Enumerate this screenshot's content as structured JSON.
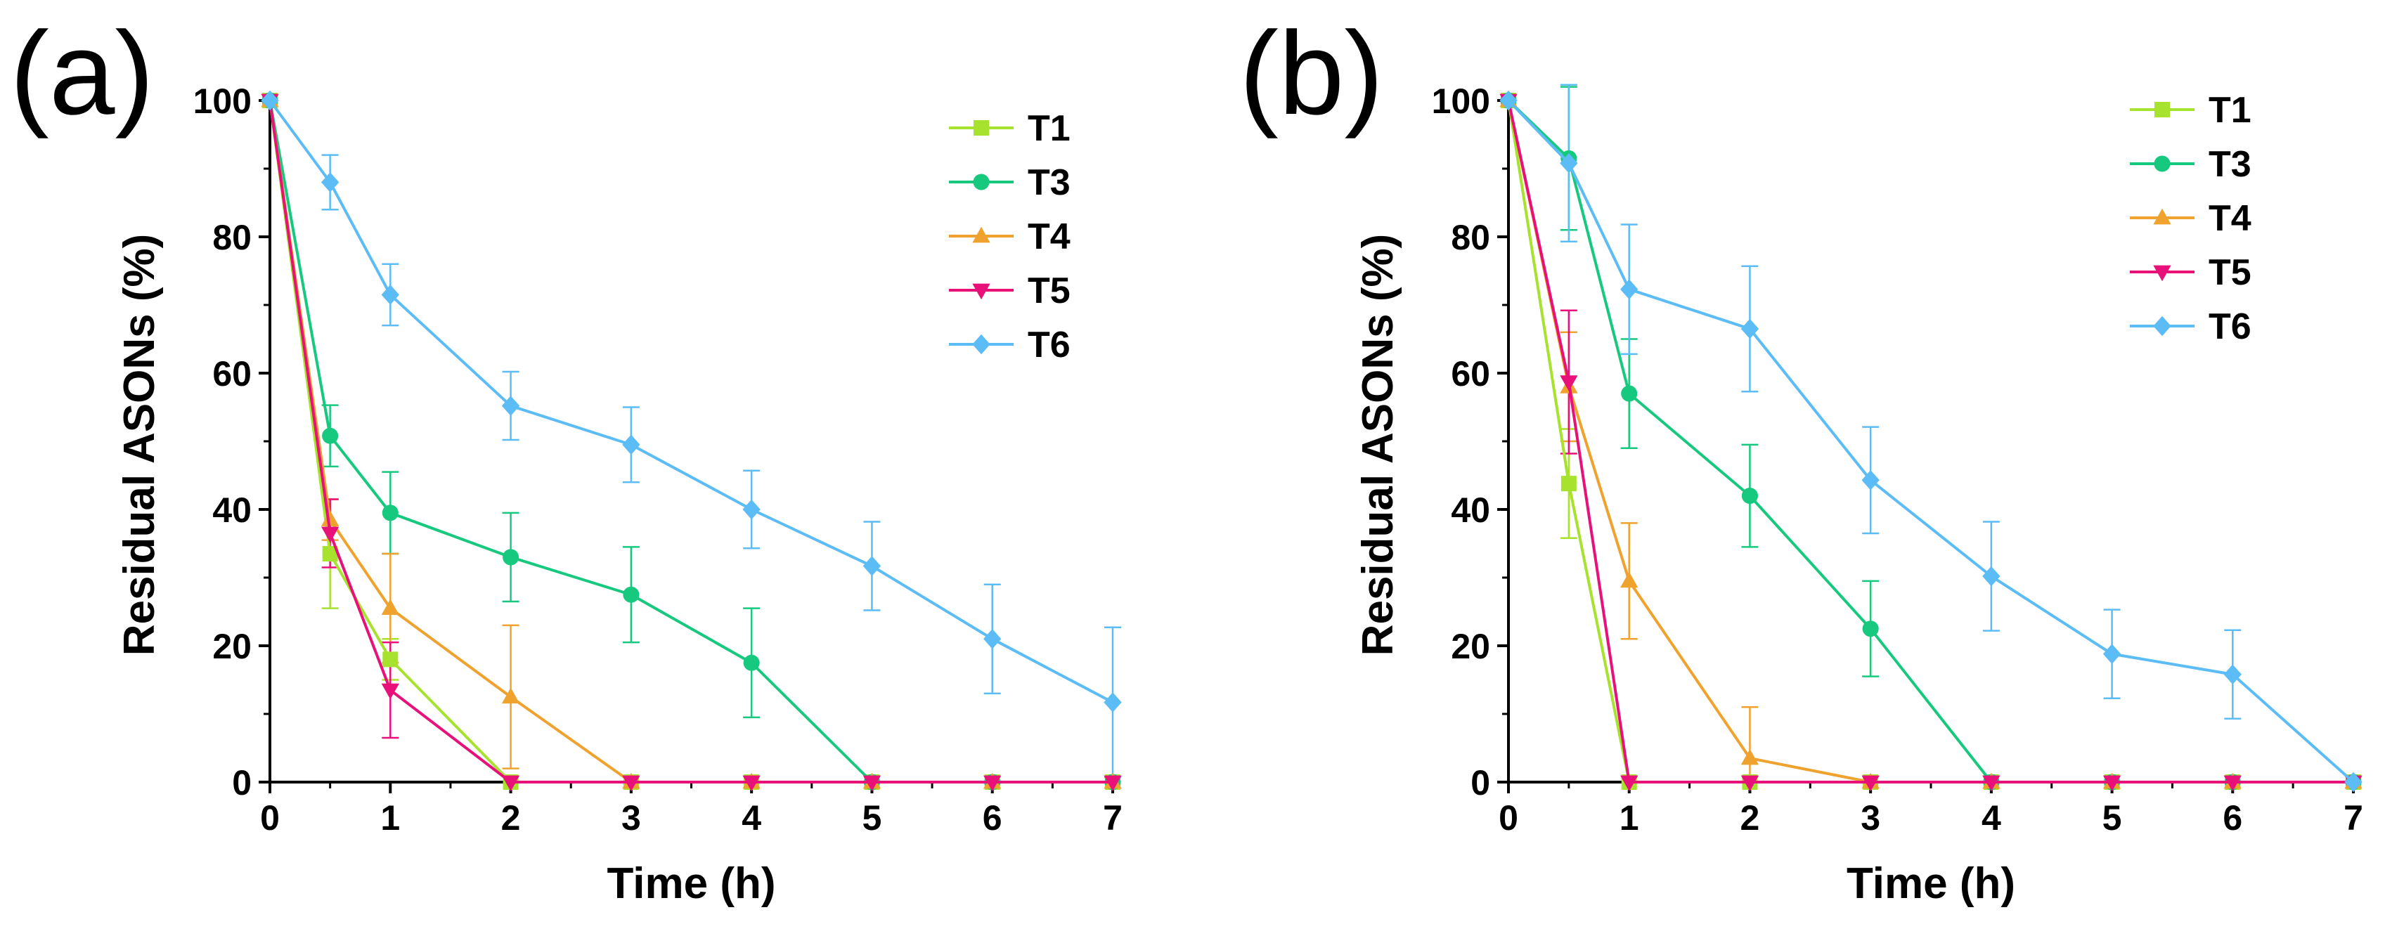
{
  "panels": [
    {
      "tag": "(a)",
      "chart_data": {
        "type": "line",
        "title": "",
        "xlabel": "Time (h)",
        "ylabel": "Residual ASONs (%)",
        "xlim": [
          0,
          7
        ],
        "ylim": [
          0,
          100
        ],
        "x_ticks": [
          0,
          1,
          2,
          3,
          4,
          5,
          6,
          7
        ],
        "y_ticks": [
          0,
          20,
          40,
          60,
          80,
          100
        ],
        "grid": false,
        "legend": "top-right",
        "series": [
          {
            "name": "T1",
            "color": "#a6e22e",
            "marker": "square",
            "x": [
              0,
              0.5,
              1,
              2,
              3,
              4,
              5,
              6,
              7
            ],
            "y": [
              100,
              33.5,
              18,
              0,
              0,
              0,
              0,
              0,
              0
            ],
            "err": [
              0,
              8,
              3,
              0,
              0,
              0,
              0,
              0,
              0
            ]
          },
          {
            "name": "T3",
            "color": "#17c97f",
            "marker": "circle",
            "x": [
              0,
              0.5,
              1,
              2,
              3,
              4,
              5,
              6,
              7
            ],
            "y": [
              100,
              50.8,
              39.5,
              33,
              27.5,
              17.5,
              0,
              0,
              0
            ],
            "err": [
              0,
              4.5,
              6,
              6.5,
              7,
              8,
              0,
              0,
              0
            ]
          },
          {
            "name": "T4",
            "color": "#f0a22e",
            "marker": "triangle-up",
            "x": [
              0,
              0.5,
              1,
              2,
              3,
              4,
              5,
              6,
              7
            ],
            "y": [
              100,
              38.5,
              25.5,
              12.5,
              0,
              0,
              0,
              0,
              0
            ],
            "err": [
              0,
              3,
              8,
              10.5,
              0,
              0,
              0,
              0,
              0
            ]
          },
          {
            "name": "T5",
            "color": "#e8117a",
            "marker": "triangle-down",
            "x": [
              0,
              0.5,
              1,
              2,
              3,
              4,
              5,
              6,
              7
            ],
            "y": [
              100,
              36.5,
              13.5,
              0,
              0,
              0,
              0,
              0,
              0
            ],
            "err": [
              0,
              5,
              7,
              0,
              0,
              0,
              0,
              0,
              0
            ]
          },
          {
            "name": "T6",
            "color": "#5cbcf5",
            "marker": "diamond",
            "x": [
              0,
              0.5,
              1,
              2,
              3,
              4,
              5,
              6,
              7
            ],
            "y": [
              100,
              88,
              71.5,
              55.2,
              49.5,
              40,
              31.7,
              21,
              11.7
            ],
            "err": [
              0,
              4,
              4.5,
              5,
              5.5,
              5.7,
              6.5,
              8,
              11
            ]
          }
        ]
      }
    },
    {
      "tag": "(b)",
      "chart_data": {
        "type": "line",
        "title": "",
        "xlabel": "Time (h)",
        "ylabel": "Residual ASONs (%)",
        "xlim": [
          0,
          7
        ],
        "ylim": [
          0,
          100
        ],
        "x_ticks": [
          0,
          1,
          2,
          3,
          4,
          5,
          6,
          7
        ],
        "y_ticks": [
          0,
          20,
          40,
          60,
          80,
          100
        ],
        "grid": false,
        "legend": "top-right",
        "series": [
          {
            "name": "T1",
            "color": "#a6e22e",
            "marker": "square",
            "x": [
              0,
              0.5,
              1,
              2,
              3,
              4,
              5,
              6,
              7
            ],
            "y": [
              100,
              43.8,
              0,
              0,
              0,
              0,
              0,
              0,
              0
            ],
            "err": [
              0,
              8,
              0,
              0,
              0,
              0,
              0,
              0,
              0
            ]
          },
          {
            "name": "T3",
            "color": "#17c97f",
            "marker": "circle",
            "x": [
              0,
              0.5,
              1,
              2,
              3,
              4,
              5,
              6,
              7
            ],
            "y": [
              100,
              91.5,
              57,
              42,
              22.5,
              0,
              0,
              0,
              0
            ],
            "err": [
              0,
              10.5,
              8,
              7.5,
              7,
              0,
              0,
              0,
              0
            ]
          },
          {
            "name": "T4",
            "color": "#f0a22e",
            "marker": "triangle-up",
            "x": [
              0,
              0.5,
              1,
              2,
              3,
              4,
              5,
              6,
              7
            ],
            "y": [
              100,
              58,
              29.5,
              3.5,
              0,
              0,
              0,
              0,
              0
            ],
            "err": [
              0,
              8,
              8.5,
              7.5,
              0,
              0,
              0,
              0,
              0
            ]
          },
          {
            "name": "T5",
            "color": "#e8117a",
            "marker": "triangle-down",
            "x": [
              0,
              0.5,
              1,
              2,
              3,
              4,
              5,
              6,
              7
            ],
            "y": [
              100,
              58.7,
              0,
              0,
              0,
              0,
              0,
              0,
              0
            ],
            "err": [
              0,
              10.5,
              0,
              0,
              0,
              0,
              0,
              0,
              0
            ]
          },
          {
            "name": "T6",
            "color": "#5cbcf5",
            "marker": "diamond",
            "x": [
              0,
              0.5,
              1,
              2,
              3,
              4,
              5,
              6,
              7
            ],
            "y": [
              100,
              90.8,
              72.3,
              66.5,
              44.3,
              30.2,
              18.8,
              15.8,
              0
            ],
            "err": [
              0,
              11.5,
              9.5,
              9.2,
              7.8,
              8,
              6.5,
              6.5,
              0
            ]
          }
        ]
      }
    }
  ]
}
